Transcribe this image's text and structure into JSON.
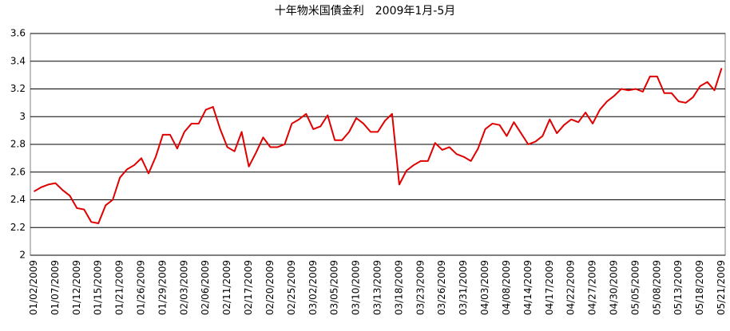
{
  "chart_data": {
    "type": "line",
    "title": "十年物米国債金利　2009年1月-5月",
    "categories": [
      "01/02/2009",
      null,
      null,
      "01/07/2009",
      null,
      null,
      "01/12/2009",
      null,
      null,
      "01/15/2009",
      null,
      null,
      "01/21/2009",
      null,
      null,
      "01/26/2009",
      null,
      null,
      "01/29/2009",
      null,
      null,
      "02/03/2009",
      null,
      null,
      "02/06/2009",
      null,
      null,
      "02/11/2009",
      null,
      null,
      "02/17/2009",
      null,
      null,
      "02/20/2009",
      null,
      null,
      "02/25/2009",
      null,
      null,
      "03/02/2009",
      null,
      null,
      "03/05/2009",
      null,
      null,
      "03/10/2009",
      null,
      null,
      "03/13/2009",
      null,
      null,
      "03/18/2009",
      null,
      null,
      "03/23/2009",
      null,
      null,
      "03/26/2009",
      null,
      null,
      "03/31/2009",
      null,
      null,
      "04/03/2009",
      null,
      null,
      "04/08/2009",
      null,
      null,
      "04/14/2009",
      null,
      null,
      "04/17/2009",
      null,
      null,
      "04/22/2009",
      null,
      null,
      "04/27/2009",
      null,
      null,
      "04/30/2009",
      null,
      null,
      "05/05/2009",
      null,
      null,
      "05/08/2009",
      null,
      null,
      "05/13/2009",
      null,
      null,
      "05/18/2009",
      null,
      null,
      "05/21/2009"
    ],
    "values": [
      2.46,
      2.49,
      2.51,
      2.52,
      2.47,
      2.43,
      2.34,
      2.33,
      2.24,
      2.23,
      2.36,
      2.4,
      2.56,
      2.62,
      2.65,
      2.7,
      2.59,
      2.71,
      2.87,
      2.87,
      2.77,
      2.89,
      2.95,
      2.95,
      3.05,
      3.07,
      2.91,
      2.78,
      2.75,
      2.89,
      2.64,
      2.74,
      2.85,
      2.78,
      2.78,
      2.8,
      2.95,
      2.98,
      3.02,
      2.91,
      2.93,
      3.01,
      2.83,
      2.83,
      2.89,
      2.99,
      2.95,
      2.89,
      2.89,
      2.97,
      3.02,
      2.51,
      2.61,
      2.65,
      2.68,
      2.68,
      2.81,
      2.76,
      2.78,
      2.73,
      2.71,
      2.68,
      2.77,
      2.91,
      2.95,
      2.94,
      2.86,
      2.96,
      2.88,
      2.8,
      2.82,
      2.86,
      2.98,
      2.88,
      2.94,
      2.98,
      2.96,
      3.03,
      2.95,
      3.05,
      3.11,
      3.15,
      3.2,
      3.19,
      3.2,
      3.18,
      3.29,
      3.29,
      3.17,
      3.17,
      3.11,
      3.1,
      3.14,
      3.22,
      3.25,
      3.19,
      3.35
    ],
    "color": "#e00000",
    "ylim": [
      2,
      3.6
    ],
    "yticks": [
      2,
      2.2,
      2.4,
      2.6,
      2.8,
      3,
      3.2,
      3.4,
      3.6
    ],
    "grid": true
  }
}
